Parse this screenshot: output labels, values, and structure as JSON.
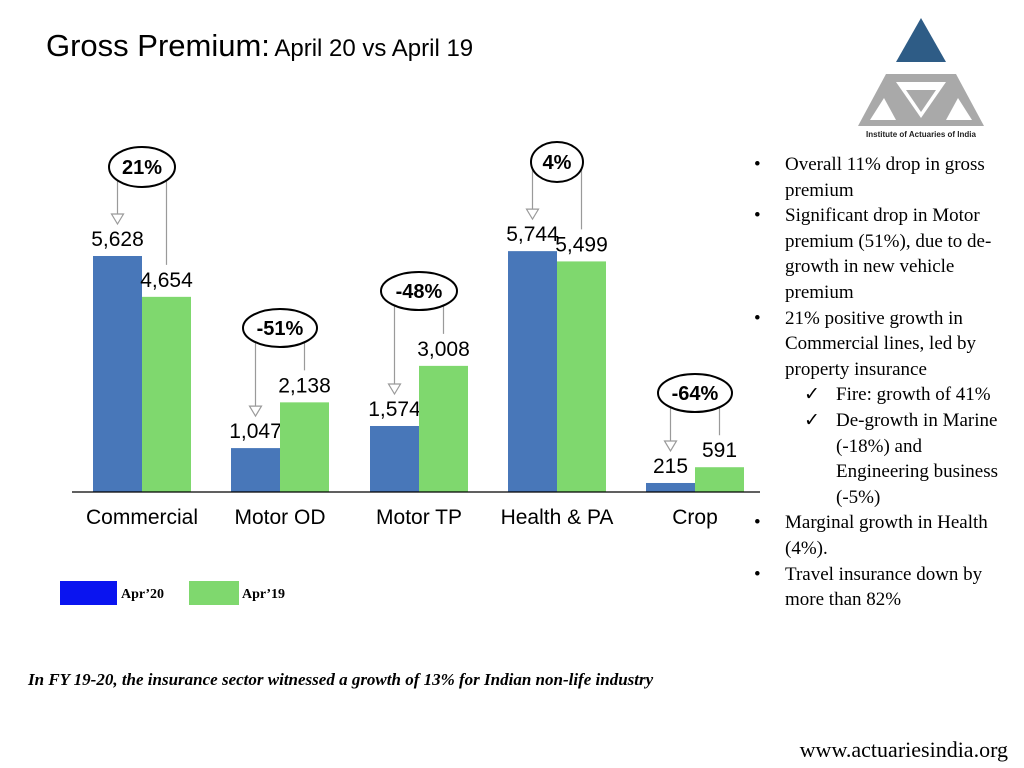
{
  "title": {
    "main": "Gross Premium:",
    "sub": "April 20 vs April 19"
  },
  "logo": {
    "caption": "Institute of Actuaries of India"
  },
  "colors": {
    "apr20": "#4877B9",
    "apr19": "#7FD86E",
    "legend_apr20": "#0A14F0",
    "legend_apr19": "#7FD86E",
    "triangle_top": "#2E5C86",
    "triangle_grey": "#A9A9A9"
  },
  "chart_data": {
    "type": "bar",
    "categories": [
      "Commercial",
      "Motor OD",
      "Motor TP",
      "Health & PA",
      "Crop"
    ],
    "series": [
      {
        "name": "Apr’20",
        "values": [
          5628,
          1047,
          1574,
          5744,
          215
        ],
        "labels": [
          "5,628",
          "1,047",
          "1,574",
          "5,744",
          "215"
        ]
      },
      {
        "name": "Apr’19",
        "values": [
          4654,
          2138,
          3008,
          5499,
          591
        ],
        "labels": [
          "4,654",
          "2,138",
          "3,008",
          "5,499",
          "591"
        ]
      }
    ],
    "growth_labels": [
      "21%",
      "-51%",
      "-48%",
      "4%",
      "-64%"
    ],
    "ylim": [
      0,
      6000
    ],
    "title": "",
    "xlabel": "",
    "ylabel": ""
  },
  "legend": {
    "apr20": "Apr’20",
    "apr19": "Apr’19"
  },
  "bullets": [
    {
      "level": 1,
      "marker": "•",
      "text": "Overall 11% drop in gross premium"
    },
    {
      "level": 1,
      "marker": "•",
      "text": "Significant drop in Motor premium (51%), due to de-growth in new vehicle premium"
    },
    {
      "level": 1,
      "marker": "•",
      "text": "21% positive growth in Commercial lines, led by property insurance"
    },
    {
      "level": 2,
      "marker": "✓",
      "text": "Fire: growth of 41%"
    },
    {
      "level": 2,
      "marker": "✓",
      "text": "De-growth in Marine (-18%) and Engineering business (-5%)"
    },
    {
      "level": 1,
      "marker": "•",
      "text": "Marginal growth in Health (4%)."
    },
    {
      "level": 1,
      "marker": "•",
      "text": "Travel insurance down by more than 82%"
    }
  ],
  "footnote": "In FY 19-20, the insurance sector witnessed a growth of 13% for Indian non-life industry",
  "url": "www.actuariesindia.org"
}
